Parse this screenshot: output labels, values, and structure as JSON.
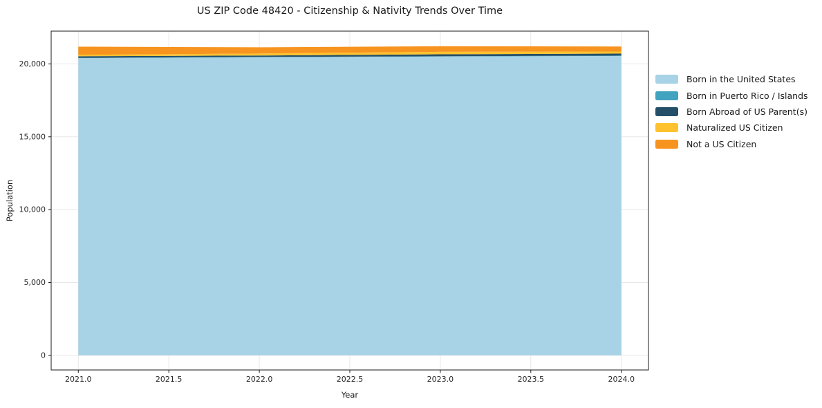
{
  "title": "US ZIP Code 48420 - Citizenship & Nativity Trends Over Time",
  "chart_data": {
    "type": "area",
    "stacked": true,
    "title": "US ZIP Code 48420 - Citizenship & Nativity Trends Over Time",
    "xlabel": "Year",
    "ylabel": "Population",
    "x": [
      2021,
      2022,
      2023,
      2024
    ],
    "series": [
      {
        "name": "Born in the United States",
        "color": "#a8d2e5",
        "values": [
          20395,
          20460,
          20505,
          20550
        ]
      },
      {
        "name": "Born in Puerto Rico / Islands",
        "color": "#40a3bf",
        "values": [
          20,
          20,
          20,
          20
        ]
      },
      {
        "name": "Born Abroad of US Parent(s)",
        "color": "#254f68",
        "values": [
          110,
          95,
          135,
          140
        ]
      },
      {
        "name": "Naturalized US Citizen",
        "color": "#fdc22d",
        "values": [
          95,
          140,
          175,
          140
        ]
      },
      {
        "name": "Not a US Citizen",
        "color": "#f79420",
        "values": [
          565,
          425,
          380,
          345
        ]
      }
    ],
    "xticks": {
      "values": [
        2021.0,
        2021.5,
        2022.0,
        2022.5,
        2023.0,
        2023.5,
        2024.0
      ],
      "labels": [
        "2021.0",
        "2021.5",
        "2022.0",
        "2022.5",
        "2023.0",
        "2023.5",
        "2024.0"
      ]
    },
    "yticks": {
      "values": [
        0,
        5000,
        10000,
        15000,
        20000
      ],
      "labels": [
        "0",
        "5,000",
        "10,000",
        "15,000",
        "20,000"
      ]
    },
    "xlim": [
      2020.85,
      2024.15
    ],
    "ylim": [
      -1000,
      22250
    ],
    "grid": true,
    "grid_color": "#e7e7e7",
    "spine_color": "#1a1a1a",
    "tick_label_color": "#262626",
    "legend_position": "right"
  }
}
